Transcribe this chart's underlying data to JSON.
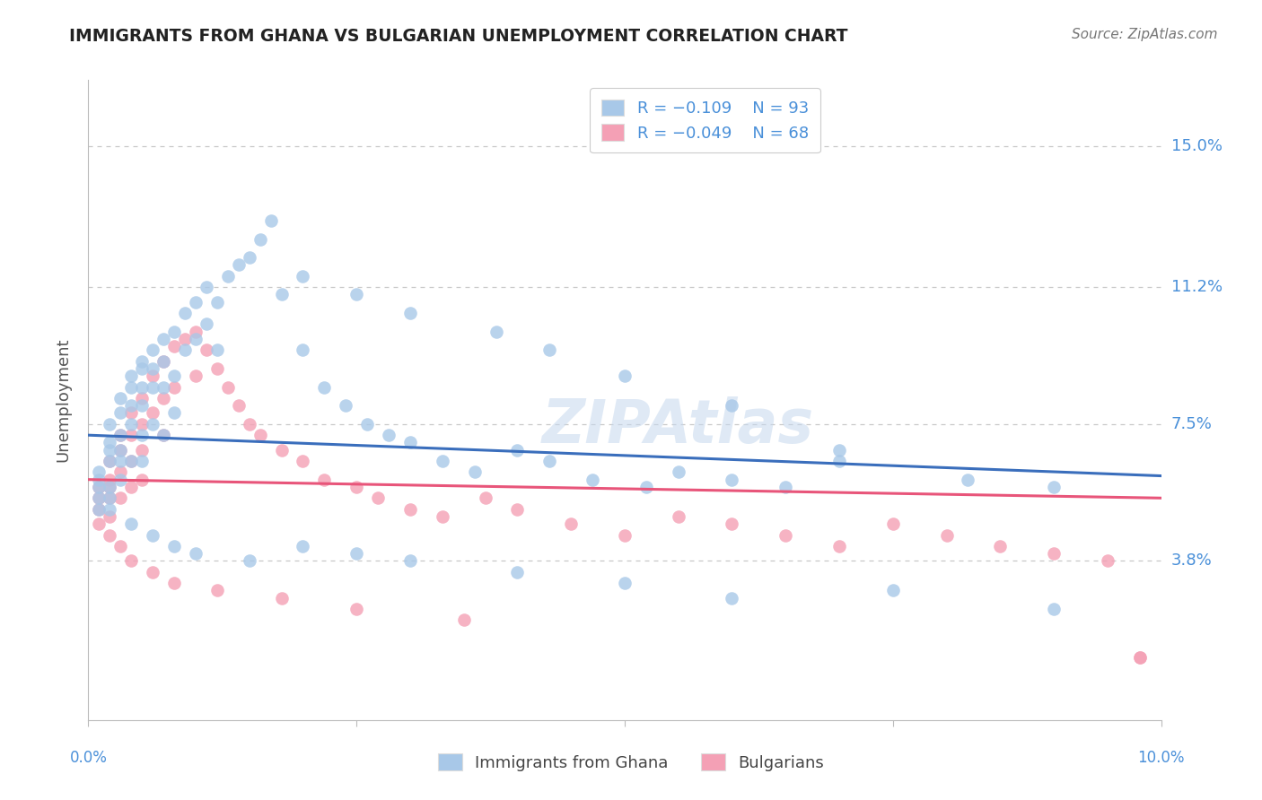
{
  "title": "IMMIGRANTS FROM GHANA VS BULGARIAN UNEMPLOYMENT CORRELATION CHART",
  "source": "Source: ZipAtlas.com",
  "ylabel": "Unemployment",
  "ytick_labels": [
    "15.0%",
    "11.2%",
    "7.5%",
    "3.8%"
  ],
  "ytick_values": [
    0.15,
    0.112,
    0.075,
    0.038
  ],
  "xlim": [
    0.0,
    0.1
  ],
  "ylim": [
    -0.005,
    0.168
  ],
  "legend_blue_r": "R = −0.109",
  "legend_blue_n": "N = 93",
  "legend_pink_r": "R = −0.049",
  "legend_pink_n": "N = 68",
  "label_blue": "Immigrants from Ghana",
  "label_pink": "Bulgarians",
  "color_blue": "#a8c8e8",
  "color_pink": "#f4a0b5",
  "line_blue": "#3a6ebc",
  "line_pink": "#e8557a",
  "background": "#ffffff",
  "grid_color": "#c8c8c8",
  "title_color": "#222222",
  "axis_color": "#4a90d9",
  "blue_line_x0": 0.0,
  "blue_line_x1": 0.1,
  "blue_line_y0": 0.072,
  "blue_line_y1": 0.061,
  "pink_line_x0": 0.0,
  "pink_line_x1": 0.1,
  "pink_line_y0": 0.06,
  "pink_line_y1": 0.055,
  "blue_x": [
    0.001,
    0.001,
    0.001,
    0.001,
    0.001,
    0.002,
    0.002,
    0.002,
    0.002,
    0.002,
    0.002,
    0.002,
    0.003,
    0.003,
    0.003,
    0.003,
    0.003,
    0.003,
    0.004,
    0.004,
    0.004,
    0.004,
    0.004,
    0.005,
    0.005,
    0.005,
    0.005,
    0.005,
    0.005,
    0.006,
    0.006,
    0.006,
    0.006,
    0.007,
    0.007,
    0.007,
    0.007,
    0.008,
    0.008,
    0.008,
    0.009,
    0.009,
    0.01,
    0.01,
    0.011,
    0.011,
    0.012,
    0.012,
    0.013,
    0.014,
    0.015,
    0.016,
    0.017,
    0.018,
    0.02,
    0.022,
    0.024,
    0.026,
    0.028,
    0.03,
    0.033,
    0.036,
    0.04,
    0.043,
    0.047,
    0.052,
    0.055,
    0.06,
    0.065,
    0.07,
    0.02,
    0.025,
    0.03,
    0.038,
    0.043,
    0.05,
    0.06,
    0.07,
    0.082,
    0.09,
    0.004,
    0.006,
    0.008,
    0.01,
    0.015,
    0.02,
    0.025,
    0.03,
    0.04,
    0.05,
    0.06,
    0.075,
    0.09
  ],
  "blue_y": [
    0.062,
    0.058,
    0.055,
    0.052,
    0.06,
    0.068,
    0.065,
    0.07,
    0.075,
    0.058,
    0.055,
    0.052,
    0.072,
    0.078,
    0.082,
    0.068,
    0.065,
    0.06,
    0.088,
    0.085,
    0.08,
    0.075,
    0.065,
    0.092,
    0.09,
    0.085,
    0.08,
    0.072,
    0.065,
    0.095,
    0.09,
    0.085,
    0.075,
    0.098,
    0.092,
    0.085,
    0.072,
    0.1,
    0.088,
    0.078,
    0.105,
    0.095,
    0.108,
    0.098,
    0.112,
    0.102,
    0.108,
    0.095,
    0.115,
    0.118,
    0.12,
    0.125,
    0.13,
    0.11,
    0.095,
    0.085,
    0.08,
    0.075,
    0.072,
    0.07,
    0.065,
    0.062,
    0.068,
    0.065,
    0.06,
    0.058,
    0.062,
    0.06,
    0.058,
    0.065,
    0.115,
    0.11,
    0.105,
    0.1,
    0.095,
    0.088,
    0.08,
    0.068,
    0.06,
    0.058,
    0.048,
    0.045,
    0.042,
    0.04,
    0.038,
    0.042,
    0.04,
    0.038,
    0.035,
    0.032,
    0.028,
    0.03,
    0.025
  ],
  "pink_x": [
    0.001,
    0.001,
    0.001,
    0.001,
    0.002,
    0.002,
    0.002,
    0.002,
    0.002,
    0.003,
    0.003,
    0.003,
    0.003,
    0.004,
    0.004,
    0.004,
    0.004,
    0.005,
    0.005,
    0.005,
    0.005,
    0.006,
    0.006,
    0.007,
    0.007,
    0.007,
    0.008,
    0.008,
    0.009,
    0.01,
    0.01,
    0.011,
    0.012,
    0.013,
    0.014,
    0.015,
    0.016,
    0.018,
    0.02,
    0.022,
    0.025,
    0.027,
    0.03,
    0.033,
    0.037,
    0.04,
    0.045,
    0.05,
    0.055,
    0.06,
    0.065,
    0.07,
    0.075,
    0.08,
    0.085,
    0.09,
    0.095,
    0.098,
    0.002,
    0.003,
    0.004,
    0.006,
    0.008,
    0.012,
    0.018,
    0.025,
    0.035,
    0.098
  ],
  "pink_y": [
    0.058,
    0.055,
    0.052,
    0.048,
    0.065,
    0.06,
    0.058,
    0.055,
    0.05,
    0.072,
    0.068,
    0.062,
    0.055,
    0.078,
    0.072,
    0.065,
    0.058,
    0.082,
    0.075,
    0.068,
    0.06,
    0.088,
    0.078,
    0.092,
    0.082,
    0.072,
    0.096,
    0.085,
    0.098,
    0.1,
    0.088,
    0.095,
    0.09,
    0.085,
    0.08,
    0.075,
    0.072,
    0.068,
    0.065,
    0.06,
    0.058,
    0.055,
    0.052,
    0.05,
    0.055,
    0.052,
    0.048,
    0.045,
    0.05,
    0.048,
    0.045,
    0.042,
    0.048,
    0.045,
    0.042,
    0.04,
    0.038,
    0.012,
    0.045,
    0.042,
    0.038,
    0.035,
    0.032,
    0.03,
    0.028,
    0.025,
    0.022,
    0.012
  ]
}
